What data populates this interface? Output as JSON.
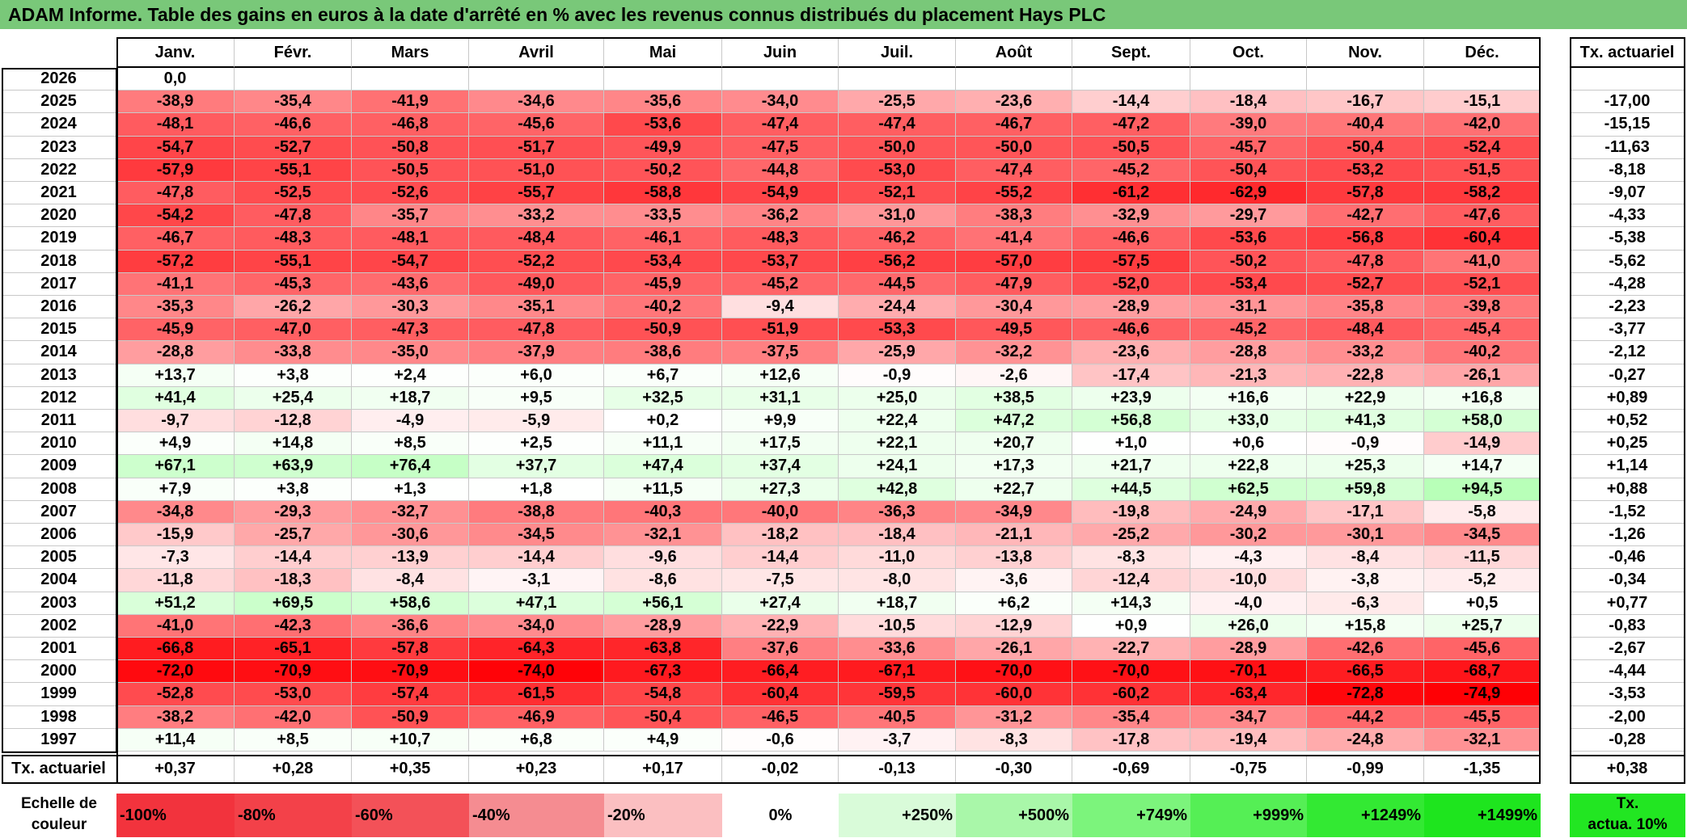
{
  "title": "ADAM Informe. Table des gains en euros à la date d'arrêté en % avec les revenus connus distribués du placement Hays PLC",
  "months": [
    "Janv.",
    "Févr.",
    "Mars",
    "Avril",
    "Mai",
    "Juin",
    "Juil.",
    "Août",
    "Sept.",
    "Oct.",
    "Nov.",
    "Déc."
  ],
  "rate_header": "Tx. actuariel",
  "years": [
    "2026",
    "2025",
    "2024",
    "2023",
    "2022",
    "2021",
    "2020",
    "2019",
    "2018",
    "2017",
    "2016",
    "2015",
    "2014",
    "2013",
    "2012",
    "2011",
    "2010",
    "2009",
    "2008",
    "2007",
    "2006",
    "2005",
    "2004",
    "2003",
    "2002",
    "2001",
    "2000",
    "1999",
    "1998",
    "1997"
  ],
  "rows": [
    [
      "0,0",
      "",
      "",
      "",
      "",
      "",
      "",
      "",
      "",
      "",
      "",
      ""
    ],
    [
      "-38,9",
      "-35,4",
      "-41,9",
      "-34,6",
      "-35,6",
      "-34,0",
      "-25,5",
      "-23,6",
      "-14,4",
      "-18,4",
      "-16,7",
      "-15,1"
    ],
    [
      "-48,1",
      "-46,6",
      "-46,8",
      "-45,6",
      "-53,6",
      "-47,4",
      "-47,4",
      "-46,7",
      "-47,2",
      "-39,0",
      "-40,4",
      "-42,0"
    ],
    [
      "-54,7",
      "-52,7",
      "-50,8",
      "-51,7",
      "-49,9",
      "-47,5",
      "-50,0",
      "-50,0",
      "-50,5",
      "-45,7",
      "-50,4",
      "-52,4"
    ],
    [
      "-57,9",
      "-55,1",
      "-50,5",
      "-51,0",
      "-50,2",
      "-44,8",
      "-53,0",
      "-47,4",
      "-45,2",
      "-50,4",
      "-53,2",
      "-51,5"
    ],
    [
      "-47,8",
      "-52,5",
      "-52,6",
      "-55,7",
      "-58,8",
      "-54,9",
      "-52,1",
      "-55,2",
      "-61,2",
      "-62,9",
      "-57,8",
      "-58,2"
    ],
    [
      "-54,2",
      "-47,8",
      "-35,7",
      "-33,2",
      "-33,5",
      "-36,2",
      "-31,0",
      "-38,3",
      "-32,9",
      "-29,7",
      "-42,7",
      "-47,6"
    ],
    [
      "-46,7",
      "-48,3",
      "-48,1",
      "-48,4",
      "-46,1",
      "-48,3",
      "-46,2",
      "-41,4",
      "-46,6",
      "-53,6",
      "-56,8",
      "-60,4"
    ],
    [
      "-57,2",
      "-55,1",
      "-54,7",
      "-52,2",
      "-53,4",
      "-53,7",
      "-56,2",
      "-57,0",
      "-57,5",
      "-50,2",
      "-47,8",
      "-41,0"
    ],
    [
      "-41,1",
      "-45,3",
      "-43,6",
      "-49,0",
      "-45,9",
      "-45,2",
      "-44,5",
      "-47,9",
      "-52,0",
      "-53,4",
      "-52,7",
      "-52,1"
    ],
    [
      "-35,3",
      "-26,2",
      "-30,3",
      "-35,1",
      "-40,2",
      "-9,4",
      "-24,4",
      "-30,4",
      "-28,9",
      "-31,1",
      "-35,8",
      "-39,8"
    ],
    [
      "-45,9",
      "-47,0",
      "-47,3",
      "-47,8",
      "-50,9",
      "-51,9",
      "-53,3",
      "-49,5",
      "-46,6",
      "-45,2",
      "-48,4",
      "-45,4"
    ],
    [
      "-28,8",
      "-33,8",
      "-35,0",
      "-37,9",
      "-38,6",
      "-37,5",
      "-25,9",
      "-32,2",
      "-23,6",
      "-28,8",
      "-33,2",
      "-40,2"
    ],
    [
      "+13,7",
      "+3,8",
      "+2,4",
      "+6,0",
      "+6,7",
      "+12,6",
      "-0,9",
      "-2,6",
      "-17,4",
      "-21,3",
      "-22,8",
      "-26,1"
    ],
    [
      "+41,4",
      "+25,4",
      "+18,7",
      "+9,5",
      "+32,5",
      "+31,1",
      "+25,0",
      "+38,5",
      "+23,9",
      "+16,6",
      "+22,9",
      "+16,8"
    ],
    [
      "-9,7",
      "-12,8",
      "-4,9",
      "-5,9",
      "+0,2",
      "+9,9",
      "+22,4",
      "+47,2",
      "+56,8",
      "+33,0",
      "+41,3",
      "+58,0"
    ],
    [
      "+4,9",
      "+14,8",
      "+8,5",
      "+2,5",
      "+11,1",
      "+17,5",
      "+22,1",
      "+20,7",
      "+1,0",
      "+0,6",
      "-0,9",
      "-14,9"
    ],
    [
      "+67,1",
      "+63,9",
      "+76,4",
      "+37,7",
      "+47,4",
      "+37,4",
      "+24,1",
      "+17,3",
      "+21,7",
      "+22,8",
      "+25,3",
      "+14,7"
    ],
    [
      "+7,9",
      "+3,8",
      "+1,3",
      "+1,8",
      "+11,5",
      "+27,3",
      "+42,8",
      "+22,7",
      "+44,5",
      "+62,5",
      "+59,8",
      "+94,5"
    ],
    [
      "-34,8",
      "-29,3",
      "-32,7",
      "-38,8",
      "-40,3",
      "-40,0",
      "-36,3",
      "-34,9",
      "-19,8",
      "-24,9",
      "-17,1",
      "-5,8"
    ],
    [
      "-15,9",
      "-25,7",
      "-30,6",
      "-34,5",
      "-32,1",
      "-18,2",
      "-18,4",
      "-21,1",
      "-25,2",
      "-30,2",
      "-30,1",
      "-34,5"
    ],
    [
      "-7,3",
      "-14,4",
      "-13,9",
      "-14,4",
      "-9,6",
      "-14,4",
      "-11,0",
      "-13,8",
      "-8,3",
      "-4,3",
      "-8,4",
      "-11,5"
    ],
    [
      "-11,8",
      "-18,3",
      "-8,4",
      "-3,1",
      "-8,6",
      "-7,5",
      "-8,0",
      "-3,6",
      "-12,4",
      "-10,0",
      "-3,8",
      "-5,2"
    ],
    [
      "+51,2",
      "+69,5",
      "+58,6",
      "+47,1",
      "+56,1",
      "+27,4",
      "+18,7",
      "+6,2",
      "+14,3",
      "-4,0",
      "-6,3",
      "+0,5"
    ],
    [
      "-41,0",
      "-42,3",
      "-36,6",
      "-34,0",
      "-28,9",
      "-22,9",
      "-10,5",
      "-12,9",
      "+0,9",
      "+26,0",
      "+15,8",
      "+25,7"
    ],
    [
      "-66,8",
      "-65,1",
      "-57,8",
      "-64,3",
      "-63,8",
      "-37,6",
      "-33,6",
      "-26,1",
      "-22,7",
      "-28,9",
      "-42,6",
      "-45,6"
    ],
    [
      "-72,0",
      "-70,9",
      "-70,9",
      "-74,0",
      "-67,3",
      "-66,4",
      "-67,1",
      "-70,0",
      "-70,0",
      "-70,1",
      "-66,5",
      "-68,7"
    ],
    [
      "-52,8",
      "-53,0",
      "-57,4",
      "-61,5",
      "-54,8",
      "-60,4",
      "-59,5",
      "-60,0",
      "-60,2",
      "-63,4",
      "-72,8",
      "-74,9"
    ],
    [
      "-38,2",
      "-42,0",
      "-50,9",
      "-46,9",
      "-50,4",
      "-46,5",
      "-40,5",
      "-31,2",
      "-35,4",
      "-34,7",
      "-44,2",
      "-45,5"
    ],
    [
      "+11,4",
      "+8,5",
      "+10,7",
      "+6,8",
      "+4,9",
      "-0,6",
      "-3,7",
      "-8,3",
      "-17,8",
      "-19,4",
      "-24,8",
      "-32,1"
    ]
  ],
  "row_rates": [
    "",
    "-17,00",
    "-15,15",
    "-11,63",
    "-8,18",
    "-9,07",
    "-4,33",
    "-5,38",
    "-5,62",
    "-4,28",
    "-2,23",
    "-3,77",
    "-2,12",
    "-0,27",
    "+0,89",
    "+0,52",
    "+0,25",
    "+1,14",
    "+0,88",
    "-1,52",
    "-1,26",
    "-0,46",
    "-0,34",
    "+0,77",
    "-0,83",
    "-2,67",
    "-4,44",
    "-3,53",
    "-2,00",
    "-0,28"
  ],
  "footer": {
    "label": "Tx. actuariel",
    "values": [
      "+0,37",
      "+0,28",
      "+0,35",
      "+0,23",
      "+0,17",
      "-0,02",
      "-0,13",
      "-0,30",
      "-0,69",
      "-0,75",
      "-0,99",
      "-1,35"
    ],
    "total": "+0,38"
  },
  "scale": {
    "label_line1": "Echelle de",
    "label_line2": "couleur",
    "items": [
      {
        "label": "-100%",
        "color": "#f2333d",
        "align": "left"
      },
      {
        "label": "-80%",
        "color": "#f34149",
        "align": "left"
      },
      {
        "label": "-60%",
        "color": "#f35158",
        "align": "left"
      },
      {
        "label": "-40%",
        "color": "#f58c91",
        "align": "left"
      },
      {
        "label": "-20%",
        "color": "#fbbfc1",
        "align": "left"
      },
      {
        "label": "0%",
        "color": "#ffffff",
        "align": "center"
      },
      {
        "label": "+250%",
        "color": "#d9fbd9",
        "align": "right"
      },
      {
        "label": "+500%",
        "color": "#a9f7a9",
        "align": "right"
      },
      {
        "label": "+749%",
        "color": "#7cf47c",
        "align": "right"
      },
      {
        "label": "+999%",
        "color": "#55ef55",
        "align": "right"
      },
      {
        "label": "+1249%",
        "color": "#33e933",
        "align": "right"
      },
      {
        "label": "+1499%",
        "color": "#1ee51e",
        "align": "right"
      }
    ],
    "side_line1": "Tx.",
    "side_line2": "actua. 10%",
    "side_color": "#22e622"
  }
}
